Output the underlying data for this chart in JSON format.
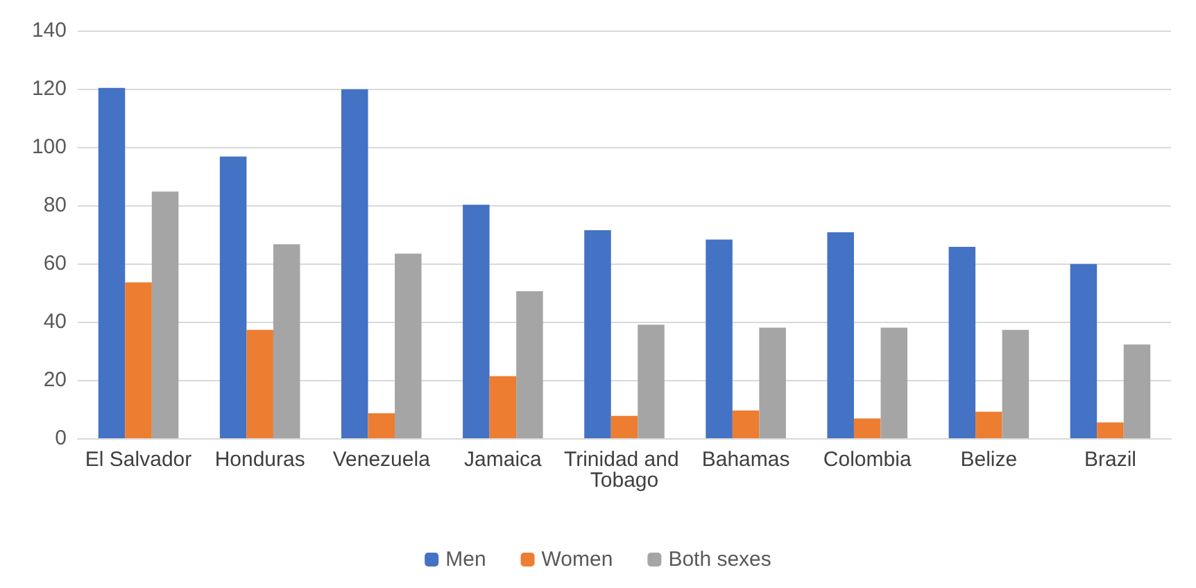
{
  "chart_data": {
    "type": "bar",
    "categories": [
      "El Salvador",
      "Honduras",
      "Venezuela",
      "Jamaica",
      "Trinidad and Tobago",
      "Bahamas",
      "Colombia",
      "Belize",
      "Brazil"
    ],
    "series": [
      {
        "name": "Men",
        "color": "#4472c4",
        "values": [
          120.3,
          96.7,
          119.8,
          80.2,
          71.4,
          68.2,
          70.7,
          65.7,
          59.8
        ]
      },
      {
        "name": "Women",
        "color": "#ed7d31",
        "values": [
          53.5,
          37.2,
          8.6,
          21.3,
          7.7,
          9.5,
          6.8,
          9.1,
          5.4
        ]
      },
      {
        "name": "Both sexes",
        "color": "#a5a5a5",
        "values": [
          84.7,
          66.6,
          63.4,
          50.5,
          39,
          38,
          38,
          37.2,
          32.2
        ]
      }
    ],
    "ylim": [
      0,
      140
    ],
    "yticks": [
      0,
      20,
      40,
      60,
      80,
      100,
      120,
      140
    ],
    "grid": "y",
    "legend": "bottom"
  }
}
